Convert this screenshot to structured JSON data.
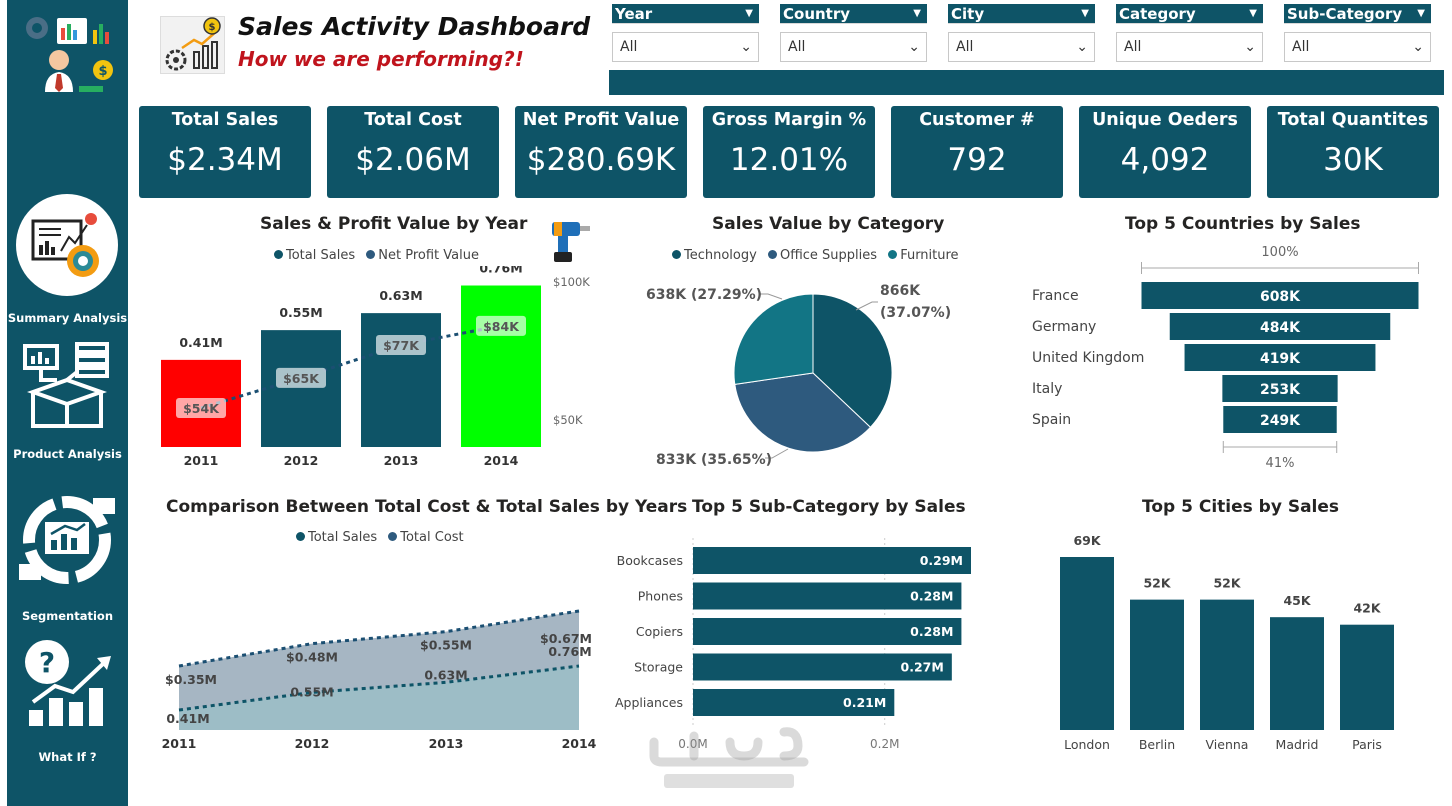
{
  "header": {
    "title": "Sales Activity Dashboard",
    "subtitle": "How we are performing?!"
  },
  "nav": [
    {
      "label": "Summary Analysis",
      "icon": "summary-analysis-icon"
    },
    {
      "label": "Product Analysis",
      "icon": "product-analysis-icon"
    },
    {
      "label": "Segmentation",
      "icon": "segmentation-icon"
    },
    {
      "label": "What If ?",
      "icon": "what-if-icon"
    }
  ],
  "slicers": [
    {
      "label": "Year",
      "value": "All"
    },
    {
      "label": "Country",
      "value": "All"
    },
    {
      "label": "City",
      "value": "All"
    },
    {
      "label": "Category",
      "value": "All"
    },
    {
      "label": "Sub-Category",
      "value": "All"
    }
  ],
  "kpis": [
    {
      "label": "Total Sales",
      "value": "$2.34M"
    },
    {
      "label": "Total Cost",
      "value": "$2.06M"
    },
    {
      "label": "Net Profit Value",
      "value": "$280.69K"
    },
    {
      "label": "Gross Margin %",
      "value": "12.01%"
    },
    {
      "label": "Customer #",
      "value": "792"
    },
    {
      "label": "Unique Oeders",
      "value": "4,092"
    },
    {
      "label": "Total Quantites",
      "value": "30K"
    }
  ],
  "colors": {
    "primary": "#0e5467",
    "sales_2011": "#ff0000",
    "sales_2014": "#00ff00",
    "technology": "#0e5467",
    "office_supplies": "#2e5a7e",
    "furniture": "#127585",
    "title_red": "#c0141d"
  },
  "charts": {
    "sales_profit": {
      "title": "Sales & Profit Value by Year",
      "legend": [
        "Total Sales",
        "Net Profit Value"
      ],
      "right_ticks": [
        "$100K",
        "$50K"
      ],
      "years": [
        "2011",
        "2012",
        "2013",
        "2014"
      ],
      "sales_labels": [
        "0.41M",
        "0.55M",
        "0.63M",
        "0.76M"
      ],
      "profit_labels": [
        "$54K",
        "$65K",
        "$77K",
        "$84K"
      ]
    },
    "category": {
      "title": "Sales Value by Category",
      "legend": [
        "Technology",
        "Office Supplies",
        "Furniture"
      ],
      "labels": [
        "866K",
        "(37.07%)",
        "833K (35.65%)",
        "638K (27.29%)"
      ]
    },
    "countries": {
      "title": "Top 5 Countries by Sales",
      "top_pct": "100%",
      "bottom_pct": "41%",
      "names": [
        "France",
        "Germany",
        "United Kingdom",
        "Italy",
        "Spain"
      ],
      "labels": [
        "608K",
        "484K",
        "419K",
        "253K",
        "249K"
      ]
    },
    "cost_sales": {
      "title": "Comparison Between Total Cost & Total Sales by Years",
      "legend": [
        "Total Sales",
        "Total Cost"
      ],
      "years": [
        "2011",
        "2012",
        "2013",
        "2014"
      ],
      "cost_labels": [
        "$0.35M",
        "$0.48M",
        "$0.55M",
        "$0.67M"
      ],
      "sales_labels": [
        "0.41M",
        "0.55M",
        "0.63M",
        "0.76M"
      ]
    },
    "subcategory": {
      "title": "Top 5 Sub-Category by Sales",
      "names": [
        "Bookcases",
        "Phones",
        "Copiers",
        "Storage",
        "Appliances"
      ],
      "labels": [
        "0.29M",
        "0.28M",
        "0.28M",
        "0.27M",
        "0.21M"
      ],
      "axis": [
        "0.0M",
        "0.2M"
      ]
    },
    "cities": {
      "title": "Top 5 Cities by Sales",
      "names": [
        "London",
        "Berlin",
        "Vienna",
        "Madrid",
        "Paris"
      ],
      "labels": [
        "69K",
        "52K",
        "52K",
        "45K",
        "42K"
      ]
    }
  },
  "chart_data": [
    {
      "type": "bar",
      "title": "Sales & Profit Value by Year",
      "categories": [
        "2011",
        "2012",
        "2013",
        "2014"
      ],
      "series": [
        {
          "name": "Total Sales",
          "values": [
            0.41,
            0.55,
            0.63,
            0.76
          ],
          "unit": "M"
        },
        {
          "name": "Net Profit Value",
          "values": [
            54,
            65,
            77,
            84
          ],
          "unit": "K"
        }
      ],
      "ylim_secondary": [
        0,
        100
      ]
    },
    {
      "type": "pie",
      "title": "Sales Value by Category",
      "categories": [
        "Technology",
        "Office Supplies",
        "Furniture"
      ],
      "values": [
        866,
        833,
        638
      ],
      "percents": [
        37.07,
        35.65,
        27.29
      ]
    },
    {
      "type": "bar",
      "title": "Top 5 Countries by Sales",
      "categories": [
        "France",
        "Germany",
        "United Kingdom",
        "Italy",
        "Spain"
      ],
      "values": [
        608,
        484,
        419,
        253,
        249
      ]
    },
    {
      "type": "area",
      "title": "Comparison Between Total Cost & Total Sales by Years",
      "categories": [
        "2011",
        "2012",
        "2013",
        "2014"
      ],
      "series": [
        {
          "name": "Total Sales",
          "values": [
            0.41,
            0.55,
            0.63,
            0.76
          ]
        },
        {
          "name": "Total Cost",
          "values": [
            0.35,
            0.48,
            0.55,
            0.67
          ]
        }
      ]
    },
    {
      "type": "bar",
      "title": "Top 5 Sub-Category by Sales",
      "categories": [
        "Bookcases",
        "Phones",
        "Copiers",
        "Storage",
        "Appliances"
      ],
      "values": [
        0.29,
        0.28,
        0.28,
        0.27,
        0.21
      ],
      "xlim": [
        0,
        0.3
      ]
    },
    {
      "type": "bar",
      "title": "Top 5 Cities by Sales",
      "categories": [
        "London",
        "Berlin",
        "Vienna",
        "Madrid",
        "Paris"
      ],
      "values": [
        69,
        52,
        52,
        45,
        42
      ]
    }
  ]
}
